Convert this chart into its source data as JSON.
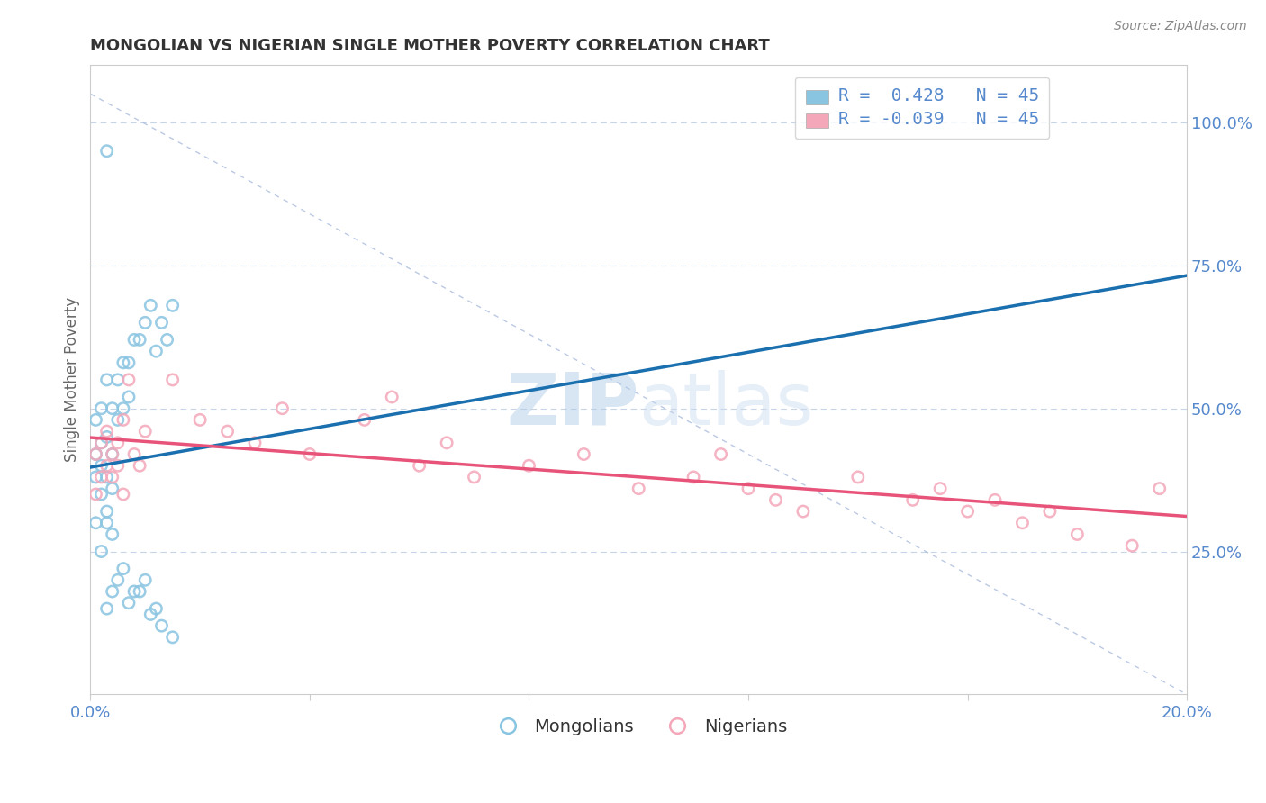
{
  "title": "MONGOLIAN VS NIGERIAN SINGLE MOTHER POVERTY CORRELATION CHART",
  "source": "Source: ZipAtlas.com",
  "ylabel": "Single Mother Poverty",
  "xlim": [
    0.0,
    0.2
  ],
  "ylim": [
    0.0,
    1.1
  ],
  "xticks": [
    0.0,
    0.04,
    0.08,
    0.12,
    0.16,
    0.2
  ],
  "xtick_labels": [
    "0.0%",
    "",
    "",
    "",
    "",
    "20.0%"
  ],
  "yticks_right": [
    0.25,
    0.5,
    0.75,
    1.0
  ],
  "ytick_labels_right": [
    "25.0%",
    "50.0%",
    "75.0%",
    "100.0%"
  ],
  "r_mongolian": 0.428,
  "n_mongolian": 45,
  "r_nigerian": -0.039,
  "n_nigerian": 45,
  "color_mongolian": "#89c4e1",
  "color_nigerian": "#f4a7b9",
  "line_color_mongolian": "#1a6faf",
  "line_color_nigerian": "#e8537a",
  "legend_label_mongolian": "Mongolians",
  "legend_label_nigerian": "Nigerians",
  "mongolian_x": [
    0.001,
    0.001,
    0.001,
    0.002,
    0.002,
    0.002,
    0.002,
    0.003,
    0.003,
    0.003,
    0.003,
    0.003,
    0.004,
    0.004,
    0.004,
    0.004,
    0.005,
    0.005,
    0.005,
    0.006,
    0.006,
    0.006,
    0.007,
    0.007,
    0.007,
    0.008,
    0.008,
    0.009,
    0.009,
    0.01,
    0.01,
    0.011,
    0.011,
    0.012,
    0.012,
    0.013,
    0.013,
    0.014,
    0.015,
    0.015,
    0.001,
    0.002,
    0.003,
    0.004,
    0.003
  ],
  "mongolian_y": [
    0.42,
    0.48,
    0.38,
    0.44,
    0.5,
    0.4,
    0.35,
    0.55,
    0.45,
    0.38,
    0.3,
    0.32,
    0.5,
    0.42,
    0.36,
    0.28,
    0.55,
    0.48,
    0.2,
    0.58,
    0.5,
    0.22,
    0.58,
    0.52,
    0.16,
    0.62,
    0.18,
    0.62,
    0.18,
    0.65,
    0.2,
    0.68,
    0.14,
    0.6,
    0.15,
    0.65,
    0.12,
    0.62,
    0.68,
    0.1,
    0.3,
    0.25,
    0.15,
    0.18,
    0.95
  ],
  "nigerian_x": [
    0.001,
    0.001,
    0.002,
    0.002,
    0.003,
    0.003,
    0.004,
    0.004,
    0.005,
    0.005,
    0.006,
    0.006,
    0.007,
    0.008,
    0.009,
    0.01,
    0.015,
    0.02,
    0.025,
    0.03,
    0.035,
    0.04,
    0.05,
    0.055,
    0.06,
    0.065,
    0.07,
    0.08,
    0.09,
    0.1,
    0.11,
    0.115,
    0.12,
    0.125,
    0.13,
    0.14,
    0.15,
    0.155,
    0.16,
    0.165,
    0.17,
    0.175,
    0.18,
    0.19,
    0.195
  ],
  "nigerian_y": [
    0.35,
    0.42,
    0.38,
    0.44,
    0.4,
    0.46,
    0.38,
    0.42,
    0.44,
    0.4,
    0.48,
    0.35,
    0.55,
    0.42,
    0.4,
    0.46,
    0.55,
    0.48,
    0.46,
    0.44,
    0.5,
    0.42,
    0.48,
    0.52,
    0.4,
    0.44,
    0.38,
    0.4,
    0.42,
    0.36,
    0.38,
    0.42,
    0.36,
    0.34,
    0.32,
    0.38,
    0.34,
    0.36,
    0.32,
    0.34,
    0.3,
    0.32,
    0.28,
    0.26,
    0.36
  ],
  "background_color": "#ffffff",
  "grid_color": "#b0c4de",
  "title_color": "#333333",
  "tick_color": "#5588cc",
  "watermark_color": "#c8daf0"
}
